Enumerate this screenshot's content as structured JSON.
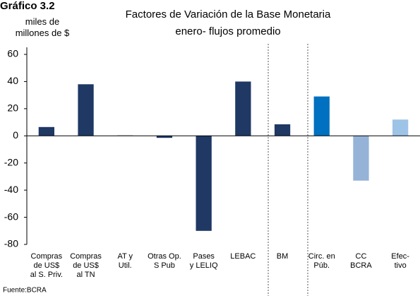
{
  "label": "Gráfico 3.2",
  "chart_data": {
    "type": "bar",
    "title": "Factores de Variación de la Base Monetaria",
    "subtitle": "enero- flujos promedio",
    "y_label": "miles de\nmillones de $",
    "source": "Fuente:BCRA",
    "categories": [
      "Compras\nde US$\nal S. Priv.",
      "Compras\nde US$\nal TN",
      "AT y\nUtil.",
      "Otras Op.\nS Pub",
      "Pases\ny LELIQ",
      "LEBAC",
      "BM",
      "Circ. en\nPúb.",
      "CC\nBCRA",
      "Efec-\ntivo"
    ],
    "values": [
      6.5,
      38,
      0.3,
      -1.5,
      -70,
      40,
      8.5,
      29,
      -33,
      12
    ],
    "colors": [
      "#1f3864",
      "#1f3864",
      "#1f3864",
      "#1f3864",
      "#1f3864",
      "#1f3864",
      "#1f3864",
      "#0070c0",
      "#95b3d7",
      "#9dc3e6"
    ],
    "ylim": [
      -80,
      60
    ],
    "yticks": [
      -80,
      -60,
      -40,
      -20,
      0,
      20,
      40,
      60
    ],
    "grid": false
  }
}
